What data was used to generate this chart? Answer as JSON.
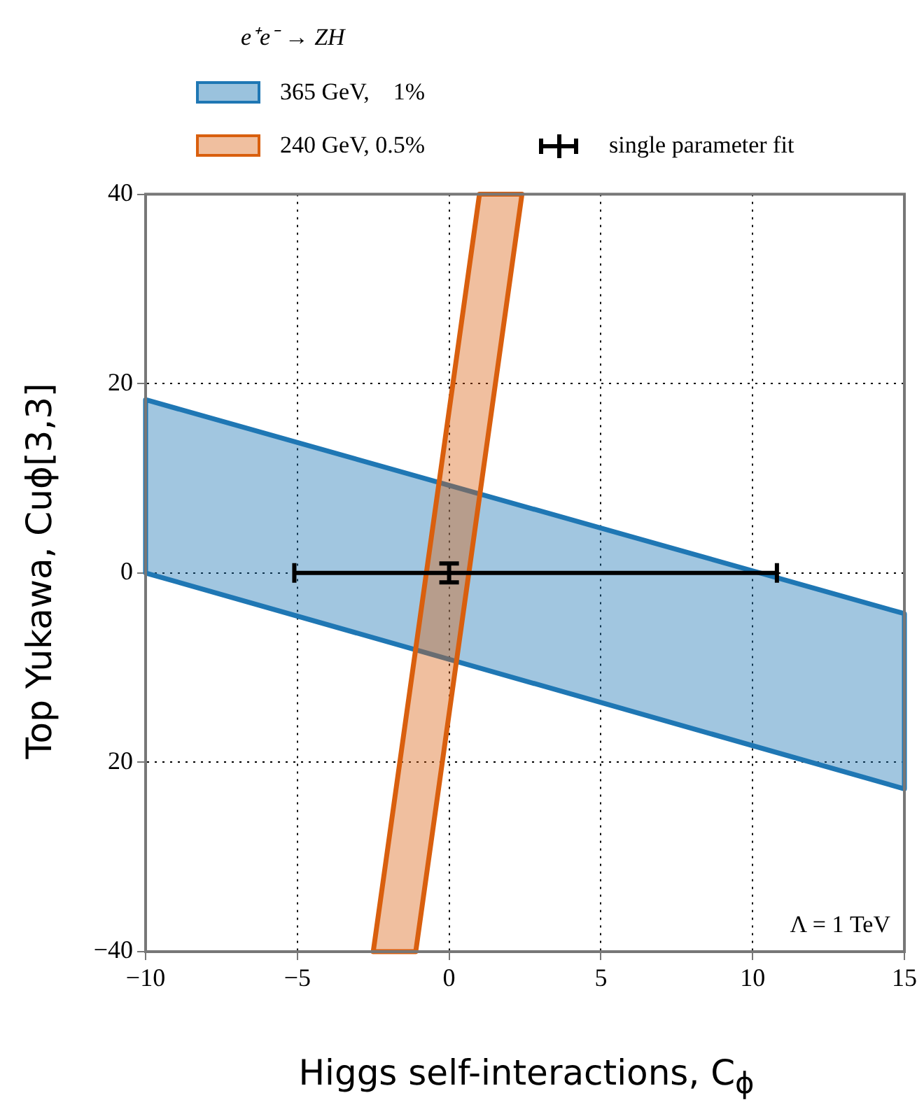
{
  "chart_data": {
    "type": "area",
    "xlabel": "Higgs self-interactions, C$_{ϕ}$",
    "ylabel": "Top Yukawa, Cuϕ[3,3]",
    "legend_title": "e⁺e⁻ → ZH",
    "legend": "top",
    "xlim": [
      -10,
      15
    ],
    "xticks": [
      -10,
      -5,
      0,
      5,
      10,
      15
    ],
    "ylim": [
      -40,
      40
    ],
    "yticks": [
      -40,
      {
        "value": -20,
        "label": "20"
      },
      0,
      20,
      40
    ],
    "grid": true,
    "line_style": "dotted",
    "annotations": [
      "Λ = 1 TeV"
    ],
    "series": [
      {
        "name": "365 GeV,    1%",
        "color": "#1f77b4",
        "x": [
          -10,
          15,
          15,
          -10
        ],
        "values": [
          18.3,
          -4.3,
          -22.8,
          0
        ]
      },
      {
        "name": "240 GeV, 0.5%",
        "color": "#d95f0e",
        "x": [
          1.0,
          2.4,
          -1.1,
          -2.5
        ],
        "values": [
          40,
          40,
          -40,
          -40
        ]
      },
      {
        "name": "single parameter fit",
        "type": "scatter",
        "color": "#000000",
        "x": [
          0
        ],
        "values": [
          0
        ],
        "xerrors": [
          [
            -5.1,
            10.8
          ]
        ],
        "errors": [
          1
        ]
      }
    ]
  }
}
